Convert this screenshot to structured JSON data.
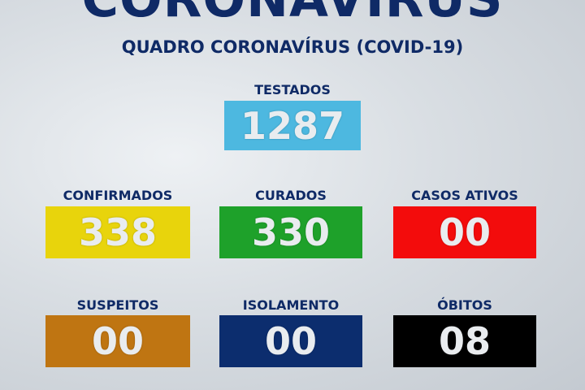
{
  "title": "CORONAVIRUS",
  "subtitle": "QUADRO CORONAVÍRUS (COVID-19)",
  "stats": [
    {
      "label": "TESTADOS",
      "value": "1287",
      "color": "#4db8e0"
    },
    {
      "label": "CONFIRMADOS",
      "value": "338",
      "color": "#e8d40c"
    },
    {
      "label": "CURADOS",
      "value": "330",
      "color": "#1ea12a"
    },
    {
      "label": "CASOS ATIVOS",
      "value": "00",
      "color": "#f30c0c"
    },
    {
      "label": "SUSPEITOS",
      "value": "00",
      "color": "#bf7512"
    },
    {
      "label": "ISOLAMENTO",
      "value": "00",
      "color": "#0c2d6e"
    },
    {
      "label": "ÓBITOS",
      "value": "08",
      "color": "#000000"
    }
  ]
}
